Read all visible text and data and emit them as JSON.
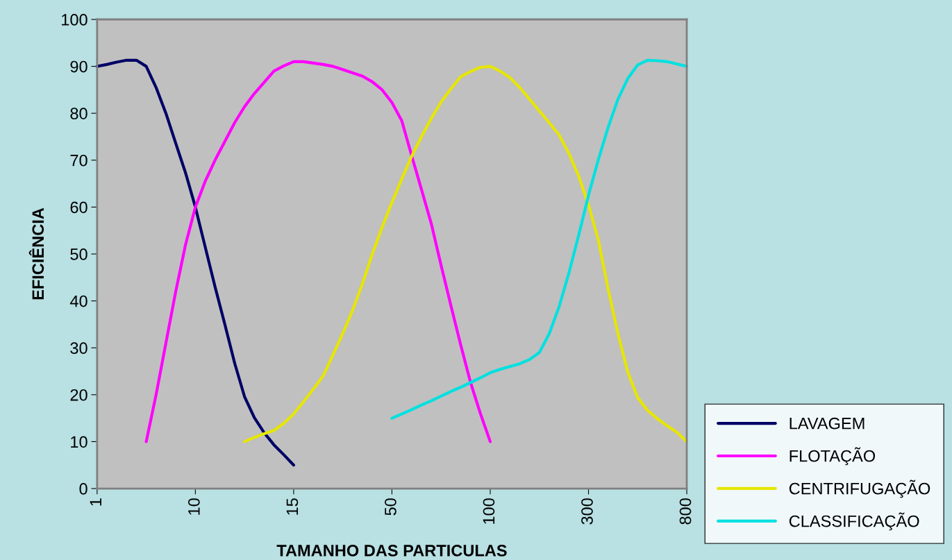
{
  "chart_data": {
    "type": "line",
    "xlabel": "TAMANHO DAS PARTICULAS",
    "ylabel": "EFICIÊNCIA",
    "categories": [
      "1",
      null,
      null,
      null,
      null,
      null,
      null,
      null,
      null,
      null,
      "10",
      null,
      null,
      null,
      null,
      null,
      null,
      null,
      null,
      null,
      "15",
      null,
      null,
      null,
      null,
      null,
      null,
      null,
      null,
      null,
      "50",
      null,
      null,
      null,
      null,
      null,
      null,
      null,
      null,
      null,
      "100",
      null,
      null,
      null,
      null,
      null,
      null,
      null,
      null,
      null,
      "300",
      null,
      null,
      null,
      null,
      null,
      null,
      null,
      null,
      null,
      "800"
    ],
    "ylim": [
      0,
      100
    ],
    "yticks": [
      0,
      10,
      20,
      30,
      40,
      50,
      60,
      70,
      80,
      90,
      100
    ],
    "grid": false,
    "legend": "bottom right",
    "marker": "none",
    "line_style": "solid",
    "series": [
      {
        "name": "LAVAGEM",
        "color": "#000066",
        "values": [
          90,
          90.4,
          90.9,
          91.3,
          91.3,
          90,
          85.5,
          80,
          73.6,
          67.3,
          60,
          51.5,
          43,
          35,
          26.7,
          19.6,
          15.1,
          11.9,
          9.3,
          7.2,
          5,
          null,
          null,
          null,
          null,
          null,
          null,
          null,
          null,
          null,
          null,
          null,
          null,
          null,
          null,
          null,
          null,
          null,
          null,
          null,
          null,
          null,
          null,
          null,
          null,
          null,
          null,
          null,
          null,
          null,
          null,
          null,
          null,
          null,
          null,
          null,
          null,
          null,
          null,
          null,
          null
        ]
      },
      {
        "name": "FLOTAÇÃO",
        "color": "#ff00ff",
        "values": [
          null,
          null,
          null,
          null,
          null,
          10,
          20,
          31,
          42,
          52,
          60,
          65.5,
          70,
          74,
          78,
          81.4,
          84.2,
          86.6,
          89,
          90.1,
          91,
          91,
          90.7,
          90.4,
          90,
          89.3,
          88.6,
          87.9,
          86.7,
          85,
          82.3,
          78.4,
          71,
          63.8,
          56.5,
          47.6,
          39,
          30.6,
          22.6,
          16,
          10,
          null,
          null,
          null,
          null,
          null,
          null,
          null,
          null,
          null,
          null,
          null,
          null,
          null,
          null,
          null,
          null,
          null,
          null,
          null,
          null
        ]
      },
      {
        "name": "CENTRIFUGAÇÃO",
        "color": "#e6e600",
        "values": [
          null,
          null,
          null,
          null,
          null,
          null,
          null,
          null,
          null,
          null,
          null,
          null,
          null,
          null,
          null,
          10,
          10.9,
          11.7,
          12.4,
          13.9,
          15.9,
          18.5,
          21.2,
          24,
          28.5,
          33.1,
          38,
          43.7,
          50,
          55.7,
          61,
          66,
          70.8,
          75,
          78.9,
          82.4,
          85.2,
          87.8,
          88.9,
          89.8,
          90,
          89,
          87.6,
          85.5,
          83,
          80.5,
          78,
          75.4,
          71.5,
          66.6,
          60.5,
          53,
          42.5,
          33,
          24.8,
          19.4,
          16.7,
          14.9,
          13.4,
          12,
          10
        ]
      },
      {
        "name": "CLASSIFICAÇÃO",
        "color": "#00e0e0",
        "values": [
          null,
          null,
          null,
          null,
          null,
          null,
          null,
          null,
          null,
          null,
          null,
          null,
          null,
          null,
          null,
          null,
          null,
          null,
          null,
          null,
          null,
          null,
          null,
          null,
          null,
          null,
          null,
          null,
          null,
          null,
          15,
          15.9,
          16.8,
          17.8,
          18.7,
          19.7,
          20.7,
          21.6,
          22.6,
          23.6,
          24.7,
          25.4,
          26,
          26.6,
          27.5,
          29,
          33,
          38.7,
          45.9,
          54,
          62.5,
          70.1,
          77,
          83,
          87.4,
          90.3,
          91.3,
          91.2,
          91,
          90.5,
          90
        ]
      }
    ]
  }
}
